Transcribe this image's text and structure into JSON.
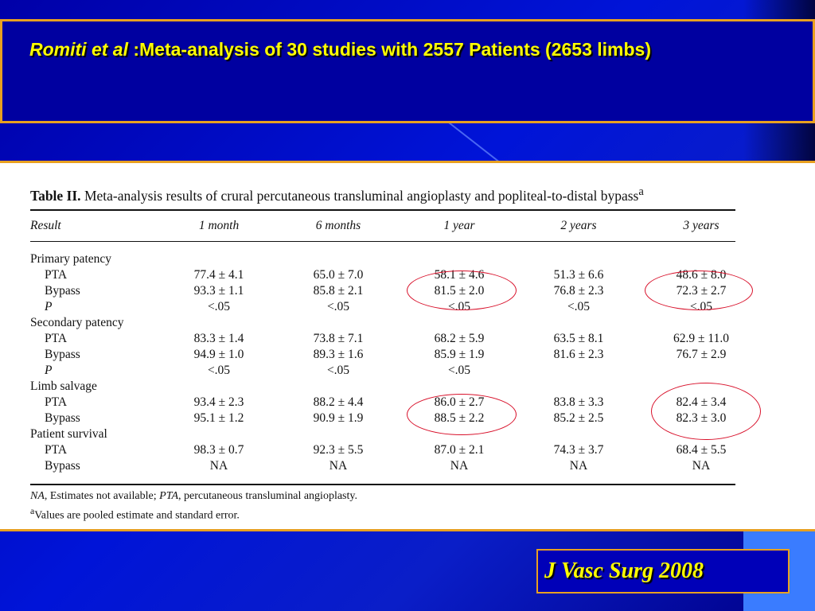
{
  "slide": {
    "title_author": "Romiti et al",
    "title_rest": " :Meta-analysis of 30 studies with 2557 Patients (2653 limbs)",
    "citation": "J Vasc Surg 2008",
    "accent_color": "#e8a020",
    "title_color": "#ffff00",
    "highlight_color": "#d8102a"
  },
  "table": {
    "caption_label": "Table II.",
    "caption_text": " Meta-analysis results of crural percutaneous transluminal angioplasty and popliteal-to-distal bypass",
    "caption_sup": "a",
    "headers": [
      "Result",
      "1 month",
      "6 months",
      "1 year",
      "2 years",
      "3 years"
    ],
    "rows": [
      {
        "label": "Primary patency",
        "type": "group",
        "cells": []
      },
      {
        "label": "PTA",
        "type": "sub",
        "cells": [
          "77.4 ± 4.1",
          "65.0 ± 7.0",
          "58.1 ± 4.6",
          "51.3 ± 6.6",
          "48.6 ± 8.0"
        ]
      },
      {
        "label": "Bypass",
        "type": "sub",
        "cells": [
          "93.3 ± 1.1",
          "85.8 ± 2.1",
          "81.5 ± 2.0",
          "76.8 ± 2.3",
          "72.3 ± 2.7"
        ]
      },
      {
        "label": "P",
        "type": "p",
        "cells": [
          "<.05",
          "<.05",
          "<.05",
          "<.05",
          "<.05"
        ]
      },
      {
        "label": "Secondary patency",
        "type": "group",
        "cells": []
      },
      {
        "label": "PTA",
        "type": "sub",
        "cells": [
          "83.3 ± 1.4",
          "73.8 ± 7.1",
          "68.2 ± 5.9",
          "63.5 ± 8.1",
          "62.9 ± 11.0"
        ]
      },
      {
        "label": "Bypass",
        "type": "sub",
        "cells": [
          "94.9 ± 1.0",
          "89.3 ± 1.6",
          "85.9 ± 1.9",
          "81.6 ± 2.3",
          "76.7 ± 2.9"
        ]
      },
      {
        "label": "P",
        "type": "p",
        "cells": [
          "<.05",
          "<.05",
          "<.05",
          "",
          ""
        ]
      },
      {
        "label": "Limb salvage",
        "type": "group",
        "cells": []
      },
      {
        "label": "PTA",
        "type": "sub",
        "cells": [
          "93.4 ± 2.3",
          "88.2 ± 4.4",
          "86.0 ± 2.7",
          "83.8 ± 3.3",
          "82.4 ± 3.4"
        ]
      },
      {
        "label": "Bypass",
        "type": "sub",
        "cells": [
          "95.1 ± 1.2",
          "90.9 ± 1.9",
          "88.5 ± 2.2",
          "85.2 ± 2.5",
          "82.3 ± 3.0"
        ]
      },
      {
        "label": "Patient survival",
        "type": "group",
        "cells": []
      },
      {
        "label": "PTA",
        "type": "sub",
        "cells": [
          "98.3 ± 0.7",
          "92.3 ± 5.5",
          "87.0 ± 2.1",
          "74.3 ± 3.7",
          "68.4 ± 5.5"
        ]
      },
      {
        "label": "Bypass",
        "type": "sub",
        "cells": [
          "NA",
          "NA",
          "NA",
          "NA",
          "NA"
        ]
      }
    ],
    "footnote1_na": "NA",
    "footnote1_text1": ", Estimates not available; ",
    "footnote1_pta": "PTA",
    "footnote1_text2": ", percutaneous transluminal angioplasty.",
    "footnote2_sup": "a",
    "footnote2_text": "Values are pooled estimate and standard error."
  }
}
